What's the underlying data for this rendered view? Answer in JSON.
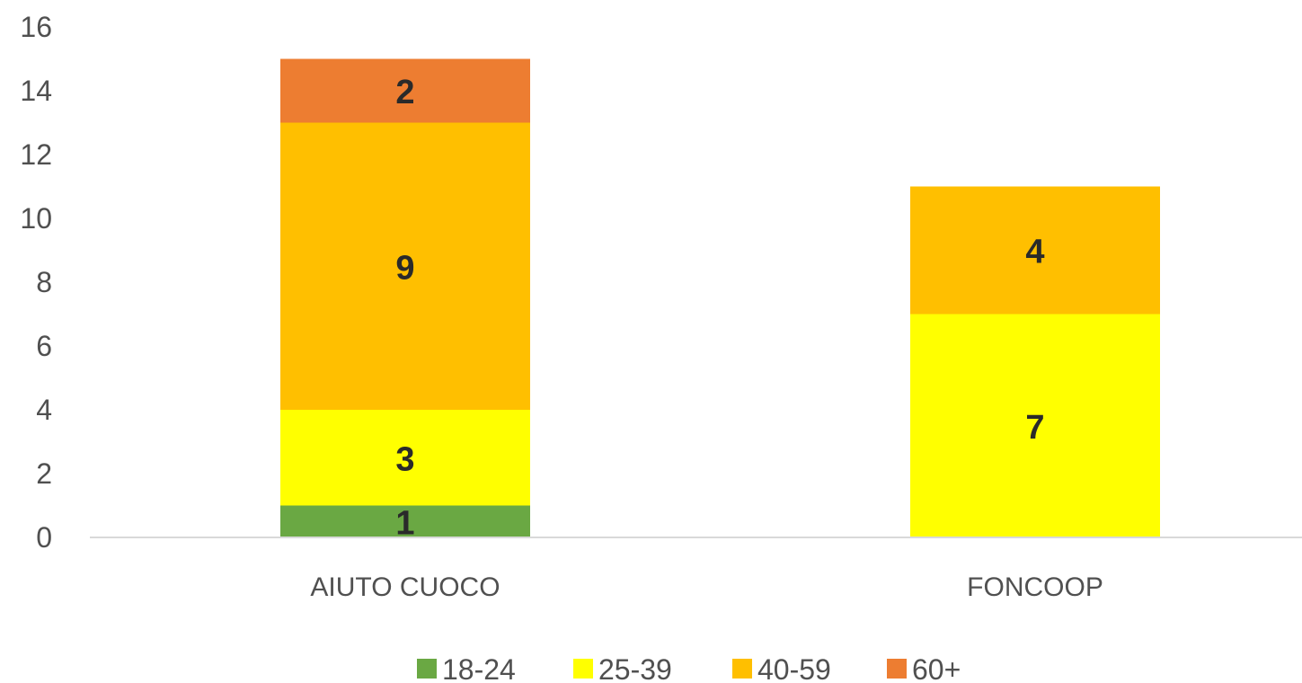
{
  "chart_data": {
    "type": "bar",
    "stacked": true,
    "title": "",
    "xlabel": "",
    "ylabel": "",
    "ylim": [
      0,
      16
    ],
    "yticks": [
      0,
      2,
      4,
      6,
      8,
      10,
      12,
      14,
      16
    ],
    "grid": false,
    "legend": "bottom",
    "categories": [
      "AIUTO CUOCO",
      "FONCOOP"
    ],
    "series": [
      {
        "name": "18-24",
        "color": "#6aa843",
        "values": [
          1,
          0
        ]
      },
      {
        "name": "25-39",
        "color": "#ffff00",
        "values": [
          3,
          7
        ]
      },
      {
        "name": "40-59",
        "color": "#ffbf00",
        "values": [
          9,
          4
        ]
      },
      {
        "name": "60+",
        "color": "#ed7d31",
        "values": [
          2,
          0
        ]
      }
    ]
  }
}
